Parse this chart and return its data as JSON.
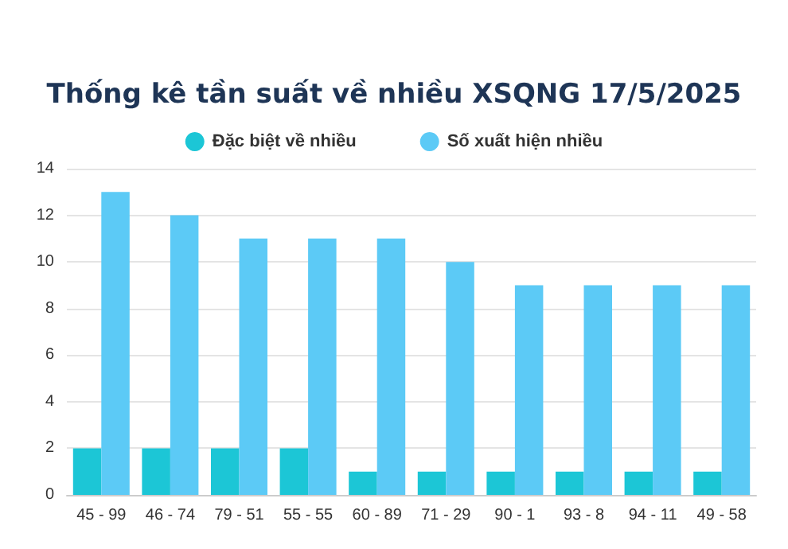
{
  "chart_data": {
    "type": "bar",
    "title": "Thống kê tần suất về nhiều XSQNG 17/5/2025",
    "categories": [
      "45 - 99",
      "46 - 74",
      "79 - 51",
      "55 - 55",
      "60 - 89",
      "71 - 29",
      "90 - 1",
      "93 - 8",
      "94 - 11",
      "49 - 58"
    ],
    "series": [
      {
        "name": "Đặc biệt về nhiều",
        "color": "#1cc6d6",
        "values": [
          2,
          2,
          2,
          2,
          1,
          1,
          1,
          1,
          1,
          1
        ]
      },
      {
        "name": "Số xuất hiện nhiều",
        "color": "#5ccaf6",
        "values": [
          13,
          12,
          11,
          11,
          11,
          10,
          9,
          9,
          9,
          9
        ]
      }
    ],
    "ylim": [
      0,
      14
    ],
    "yticks": [
      0,
      2,
      4,
      6,
      8,
      10,
      12,
      14
    ],
    "grid": "y",
    "legend": "top"
  }
}
